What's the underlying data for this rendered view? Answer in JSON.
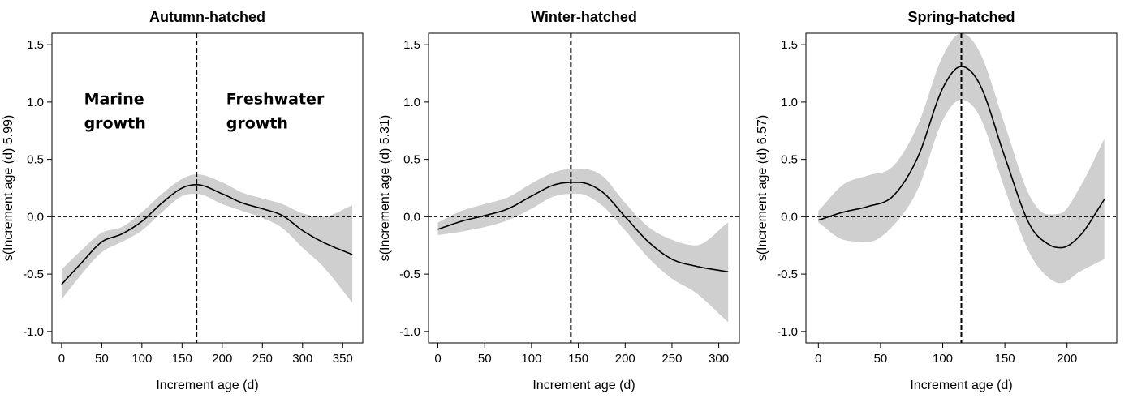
{
  "chart_data": [
    {
      "type": "line",
      "title": "Autumn-hatched",
      "xlabel": "Increment age (d)",
      "ylabel": "s(Increment age (d) 5.99)",
      "xlim": [
        -12,
        375
      ],
      "ylim": [
        -1.1,
        1.6
      ],
      "xticks": [
        0,
        50,
        100,
        150,
        200,
        250,
        300,
        350
      ],
      "yticks": [
        -1.0,
        -0.5,
        0.0,
        0.5,
        1.0,
        1.5
      ],
      "ytick_labels": [
        "-1.0",
        "-0.5",
        "0.0",
        "0.5",
        "1.0",
        "1.5"
      ],
      "vline": 168,
      "annotations": [
        {
          "lines": [
            "Marine",
            "growth"
          ],
          "x": 28,
          "y": 0.98
        },
        {
          "lines": [
            "Freshwater",
            "growth"
          ],
          "x": 205,
          "y": 0.98
        }
      ],
      "series": [
        {
          "name": "smooth",
          "x": [
            0,
            25,
            50,
            75,
            100,
            125,
            150,
            168,
            200,
            225,
            250,
            275,
            300,
            325,
            362
          ],
          "y": [
            -0.59,
            -0.4,
            -0.22,
            -0.15,
            -0.04,
            0.12,
            0.25,
            0.28,
            0.2,
            0.12,
            0.07,
            0.01,
            -0.12,
            -0.22,
            -0.33
          ]
        },
        {
          "name": "ci_upper",
          "x": [
            0,
            25,
            50,
            75,
            100,
            125,
            150,
            168,
            200,
            225,
            250,
            275,
            300,
            325,
            362
          ],
          "y": [
            -0.46,
            -0.29,
            -0.14,
            -0.09,
            0.04,
            0.2,
            0.33,
            0.37,
            0.3,
            0.21,
            0.16,
            0.11,
            0.03,
            0.0,
            0.1
          ]
        },
        {
          "name": "ci_lower",
          "x": [
            0,
            25,
            50,
            75,
            100,
            125,
            150,
            168,
            200,
            225,
            250,
            275,
            300,
            325,
            362
          ],
          "y": [
            -0.72,
            -0.5,
            -0.31,
            -0.22,
            -0.12,
            0.04,
            0.18,
            0.2,
            0.11,
            0.05,
            -0.01,
            -0.1,
            -0.27,
            -0.43,
            -0.75
          ]
        }
      ]
    },
    {
      "type": "line",
      "title": "Winter-hatched",
      "xlabel": "Increment age (d)",
      "ylabel": "s(Increment age (d) 5.31)",
      "xlim": [
        -10,
        322
      ],
      "ylim": [
        -1.1,
        1.6
      ],
      "xticks": [
        0,
        50,
        100,
        150,
        200,
        250,
        300
      ],
      "yticks": [
        -1.0,
        -0.5,
        0.0,
        0.5,
        1.0,
        1.5
      ],
      "ytick_labels": [
        "-1.0",
        "-0.5",
        "0.0",
        "0.5",
        "1.0",
        "1.5"
      ],
      "vline": 142,
      "annotations": [],
      "series": [
        {
          "name": "smooth",
          "x": [
            0,
            25,
            50,
            75,
            100,
            125,
            150,
            175,
            200,
            225,
            250,
            275,
            310
          ],
          "y": [
            -0.11,
            -0.04,
            0.01,
            0.07,
            0.18,
            0.28,
            0.3,
            0.22,
            0.0,
            -0.22,
            -0.37,
            -0.43,
            -0.48
          ]
        },
        {
          "name": "ci_upper",
          "x": [
            0,
            25,
            50,
            75,
            100,
            125,
            150,
            175,
            200,
            225,
            250,
            275,
            310
          ],
          "y": [
            -0.05,
            0.05,
            0.11,
            0.17,
            0.29,
            0.39,
            0.42,
            0.36,
            0.12,
            -0.09,
            -0.2,
            -0.25,
            -0.05
          ]
        },
        {
          "name": "ci_lower",
          "x": [
            0,
            25,
            50,
            75,
            100,
            125,
            150,
            175,
            200,
            225,
            250,
            275,
            310
          ],
          "y": [
            -0.16,
            -0.13,
            -0.09,
            -0.03,
            0.07,
            0.18,
            0.2,
            0.1,
            -0.12,
            -0.36,
            -0.54,
            -0.66,
            -0.92
          ]
        }
      ]
    },
    {
      "type": "line",
      "title": "Spring-hatched",
      "xlabel": "Increment age (d)",
      "ylabel": "s(Increment age (d) 6.57)",
      "xlim": [
        -10,
        240
      ],
      "ylim": [
        -1.1,
        1.6
      ],
      "xticks": [
        0,
        50,
        100,
        150,
        200
      ],
      "yticks": [
        -1.0,
        -0.5,
        0.0,
        0.5,
        1.0,
        1.5
      ],
      "ytick_labels": [
        "-1.0",
        "-0.5",
        "0.0",
        "0.5",
        "1.0",
        "1.5"
      ],
      "vline": 115,
      "annotations": [],
      "series": [
        {
          "name": "smooth",
          "x": [
            0,
            20,
            40,
            60,
            80,
            100,
            115,
            130,
            150,
            170,
            185,
            195,
            210,
            230
          ],
          "y": [
            -0.03,
            0.04,
            0.09,
            0.18,
            0.52,
            1.12,
            1.31,
            1.15,
            0.52,
            -0.07,
            -0.24,
            -0.27,
            -0.17,
            0.15
          ]
        },
        {
          "name": "ci_upper",
          "x": [
            0,
            20,
            40,
            60,
            80,
            100,
            115,
            130,
            150,
            170,
            185,
            195,
            210,
            230
          ],
          "y": [
            0.05,
            0.28,
            0.36,
            0.44,
            0.8,
            1.4,
            1.6,
            1.43,
            0.8,
            0.18,
            0.02,
            0.03,
            0.25,
            0.68
          ]
        },
        {
          "name": "ci_lower",
          "x": [
            0,
            20,
            40,
            60,
            80,
            100,
            115,
            130,
            150,
            170,
            185,
            195,
            210,
            230
          ],
          "y": [
            -0.05,
            -0.2,
            -0.22,
            -0.08,
            0.24,
            0.84,
            1.02,
            0.87,
            0.24,
            -0.32,
            -0.53,
            -0.58,
            -0.48,
            -0.37
          ]
        }
      ]
    }
  ]
}
